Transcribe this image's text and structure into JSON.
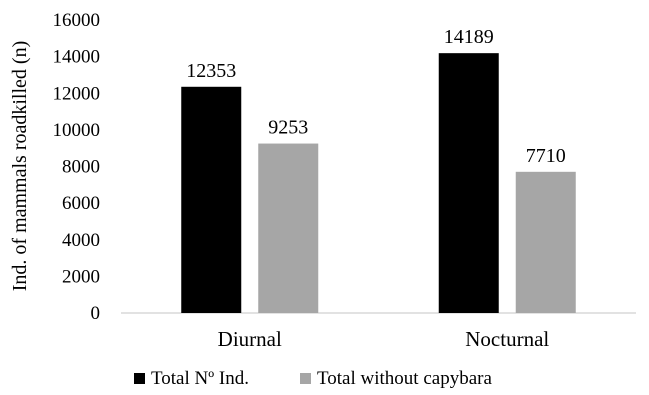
{
  "chart_data": {
    "type": "bar",
    "categories": [
      "Diurnal",
      "Nocturnal"
    ],
    "series": [
      {
        "name": "Total Nº Ind.",
        "values": [
          12353,
          14189
        ],
        "color": "#000000"
      },
      {
        "name": "Total without capybara",
        "values": [
          9253,
          7710
        ],
        "color": "#a6a6a6"
      }
    ],
    "data_labels": [
      [
        "12353",
        "14189"
      ],
      [
        "9253",
        "7710"
      ]
    ],
    "title": "",
    "xlabel": "",
    "ylabel": "Ind. of mammals roadkilled (n)",
    "ylim": [
      0,
      16000
    ],
    "yticks": [
      0,
      2000,
      4000,
      6000,
      8000,
      10000,
      12000,
      14000,
      16000
    ],
    "grid": false,
    "legend_position": "bottom"
  }
}
